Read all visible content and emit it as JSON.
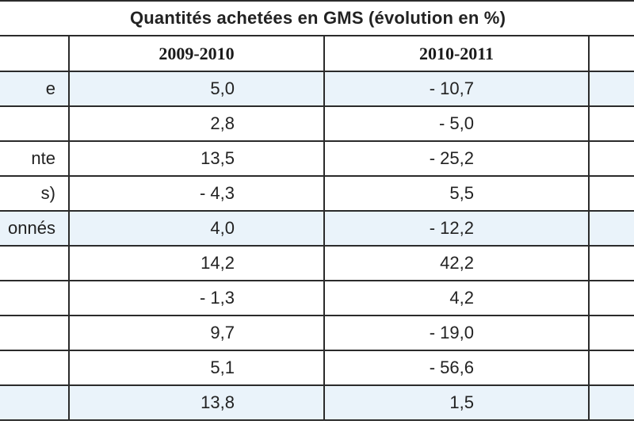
{
  "table": {
    "title": "Quantités achetées en GMS (évolution en %)",
    "columns": [
      "",
      "2009-2010",
      "2010-2011",
      ""
    ],
    "rows": [
      {
        "label": "e",
        "v1": "5,0",
        "v2": "- 10,7",
        "highlight": true
      },
      {
        "label": "",
        "v1": "2,8",
        "v2": "- 5,0",
        "highlight": false
      },
      {
        "label": "nte",
        "v1": "13,5",
        "v2": "- 25,2",
        "highlight": false
      },
      {
        "label": "s)",
        "v1": "- 4,3",
        "v2": "5,5",
        "highlight": false
      },
      {
        "label": "onnés",
        "v1": "4,0",
        "v2": "- 12,2",
        "highlight": true
      },
      {
        "label": "",
        "v1": "14,2",
        "v2": "42,2",
        "highlight": false
      },
      {
        "label": "",
        "v1": "- 1,3",
        "v2": "4,2",
        "highlight": false
      },
      {
        "label": "",
        "v1": "9,7",
        "v2": "- 19,0",
        "highlight": false
      },
      {
        "label": "",
        "v1": "5,1",
        "v2": "- 56,6",
        "highlight": false
      },
      {
        "label": "",
        "v1": "13,8",
        "v2": "1,5",
        "highlight": true
      }
    ]
  }
}
